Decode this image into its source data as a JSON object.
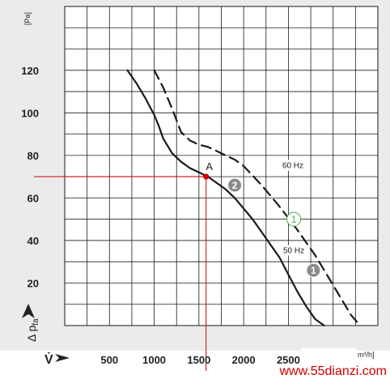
{
  "chart_data": {
    "type": "line",
    "ylabel": "Δ p",
    "ylabel_sub": "fa",
    "yunit": "[Pa]",
    "xlabel": "V̇",
    "xunit": "m³/h]",
    "ylim": [
      0,
      150
    ],
    "xlim": [
      0,
      3500
    ],
    "yticks": [
      "20",
      "40",
      "60",
      "80",
      "100",
      "120"
    ],
    "xticks": [
      "500",
      "1000",
      "1500",
      "2000",
      "2500"
    ],
    "grid": true,
    "series": [
      {
        "name": "50 Hz",
        "marker": "2",
        "color": "#1a1a1a",
        "dash": false,
        "x": [
          700,
          800,
          900,
          1000,
          1050,
          1100,
          1200,
          1300,
          1400,
          1500,
          1600,
          1700,
          1800,
          1900,
          2000,
          2100,
          2200,
          2300,
          2400,
          2500,
          2600,
          2700,
          2800,
          2900
        ],
        "y": [
          120,
          114,
          107,
          99,
          94,
          88,
          81,
          77,
          74,
          72,
          70,
          67,
          64,
          60,
          55,
          50,
          44,
          38,
          32,
          24,
          16,
          9,
          3,
          0
        ]
      },
      {
        "name": "60 Hz",
        "marker": "1",
        "color": "#1a1a1a",
        "dash": true,
        "x": [
          1000,
          1100,
          1200,
          1300,
          1400,
          1500,
          1600,
          1700,
          1800,
          1900,
          2000,
          2200,
          2400,
          2600,
          2800,
          3000,
          3200,
          3300
        ],
        "y": [
          120,
          112,
          102,
          91,
          87,
          85,
          84,
          82,
          80,
          78,
          75,
          66,
          56,
          45,
          33,
          19,
          5,
          0
        ]
      }
    ],
    "operating_point": {
      "label": "A",
      "x": 1580,
      "y": 70
    },
    "annotations": [
      {
        "text": "60 Hz",
        "x": 2550,
        "y": 74
      },
      {
        "text": "50 Hz",
        "x": 2560,
        "y": 34
      }
    ],
    "markers": [
      {
        "text": "2",
        "x": 1900,
        "y": 66,
        "style": "filled"
      },
      {
        "text": "1",
        "x": 2560,
        "y": 50,
        "style": "outline"
      },
      {
        "text": "1",
        "x": 2780,
        "y": 26,
        "style": "filled"
      }
    ]
  },
  "watermark": "www.55dianzi.com"
}
